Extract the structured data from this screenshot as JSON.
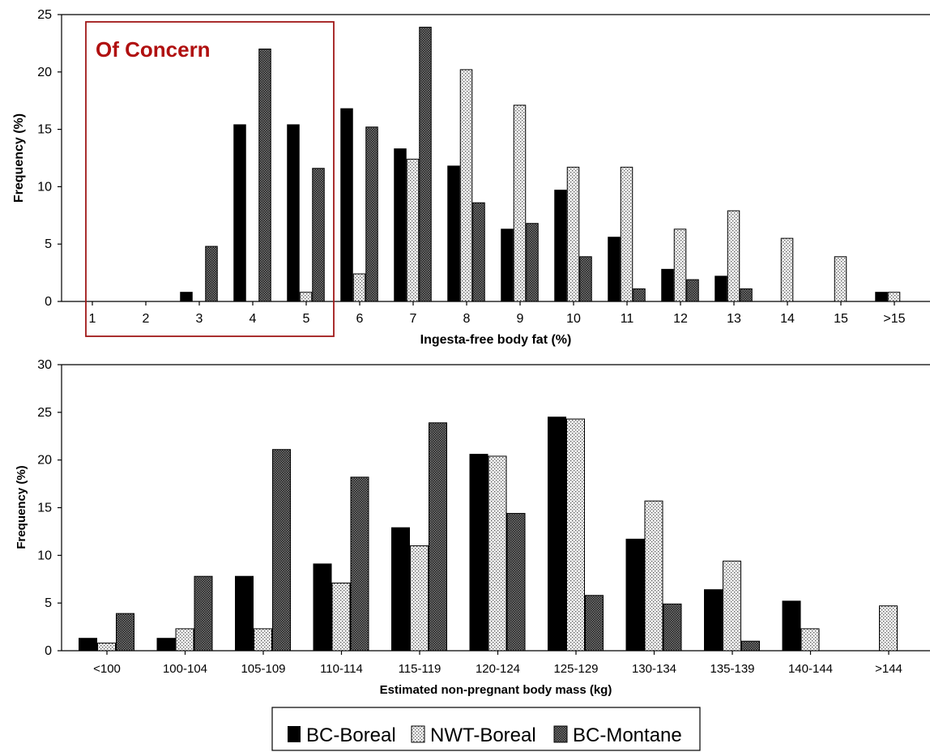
{
  "colors": {
    "BC-Boreal": "#000000",
    "NWT-Boreal": "#f2f2f2",
    "BC-Montane": "#555555",
    "annotation": "#b01010"
  },
  "legend": {
    "placement": "bottom-center",
    "items": [
      "BC-Boreal",
      "NWT-Boreal",
      "BC-Montane"
    ]
  },
  "chart_data": [
    {
      "type": "bar",
      "xlabel": "Ingesta-free body fat (%)",
      "ylabel": "Frequency (%)",
      "ylim": [
        0,
        25
      ],
      "yticks": [
        0,
        5,
        10,
        15,
        20,
        25
      ],
      "grid": false,
      "categories": [
        "1",
        "2",
        "3",
        "4",
        "5",
        "6",
        "7",
        "8",
        "9",
        "10",
        "11",
        "12",
        "13",
        "14",
        "15",
        ">15"
      ],
      "series": [
        {
          "name": "BC-Boreal",
          "values": [
            0,
            0,
            0.8,
            15.4,
            15.4,
            16.8,
            13.3,
            11.8,
            6.3,
            9.7,
            5.6,
            2.8,
            2.2,
            0,
            0,
            0.8
          ]
        },
        {
          "name": "NWT-Boreal",
          "values": [
            0,
            0,
            0,
            0,
            0.8,
            2.4,
            12.4,
            20.2,
            17.1,
            11.7,
            11.7,
            6.3,
            7.9,
            5.5,
            3.9,
            0.8
          ]
        },
        {
          "name": "BC-Montane",
          "values": [
            0,
            0,
            4.8,
            22.0,
            11.6,
            15.2,
            23.9,
            8.6,
            6.8,
            3.9,
            1.1,
            1.9,
            1.1,
            0,
            0,
            0
          ]
        }
      ],
      "annotation": {
        "text": "Of Concern",
        "categories": [
          "1",
          "2",
          "3",
          "4",
          "5"
        ]
      }
    },
    {
      "type": "bar",
      "xlabel": "Estimated non-pregnant body mass (kg)",
      "ylabel": "Frequency (%)",
      "ylim": [
        0,
        30
      ],
      "yticks": [
        0,
        5,
        10,
        15,
        20,
        25,
        30
      ],
      "grid": false,
      "categories": [
        "<100",
        "100-104",
        "105-109",
        "110-114",
        "115-119",
        "120-124",
        "125-129",
        "130-134",
        "135-139",
        "140-144",
        ">144"
      ],
      "series": [
        {
          "name": "BC-Boreal",
          "values": [
            1.3,
            1.3,
            7.8,
            9.1,
            12.9,
            20.6,
            24.5,
            11.7,
            6.4,
            5.2,
            0
          ]
        },
        {
          "name": "NWT-Boreal",
          "values": [
            0.8,
            2.3,
            2.3,
            7.1,
            11.0,
            20.4,
            24.3,
            15.7,
            9.4,
            2.3,
            4.7
          ]
        },
        {
          "name": "BC-Montane",
          "values": [
            3.9,
            7.8,
            21.1,
            18.2,
            23.9,
            14.4,
            5.8,
            4.9,
            1.0,
            0,
            0
          ]
        }
      ]
    }
  ]
}
